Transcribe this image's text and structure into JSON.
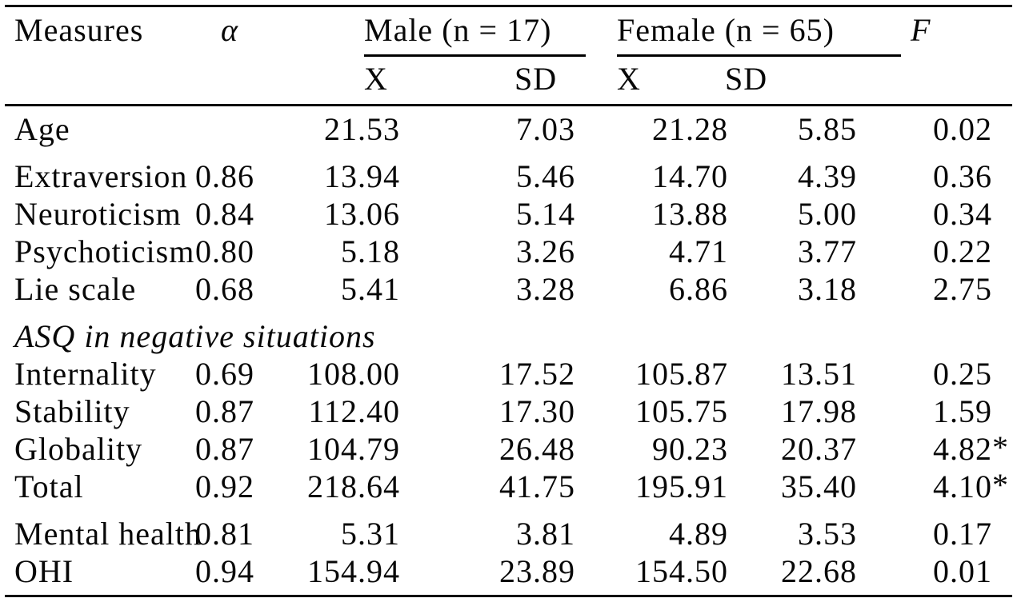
{
  "table": {
    "header": {
      "measures": "Measures",
      "alpha": "α",
      "male_group": "Male (n = 17)",
      "female_group": "Female (n = 65)",
      "f": "F",
      "male_x": "X",
      "male_sd": "SD",
      "female_x": "X",
      "female_sd": "SD"
    },
    "rows": [
      {
        "type": "data",
        "label": "Age",
        "alpha": "",
        "male_x": "21.53",
        "male_sd": "7.03",
        "female_x": "21.28",
        "female_sd": "5.85",
        "f": "0.02",
        "f_star": "",
        "gap_before": false
      },
      {
        "type": "data",
        "label": "Extraversion",
        "alpha": "0.86",
        "male_x": "13.94",
        "male_sd": "5.46",
        "female_x": "14.70",
        "female_sd": "4.39",
        "f": "0.36",
        "f_star": "",
        "gap_before": true
      },
      {
        "type": "data",
        "label": "Neuroticism",
        "alpha": "0.84",
        "male_x": "13.06",
        "male_sd": "5.14",
        "female_x": "13.88",
        "female_sd": "5.00",
        "f": "0.34",
        "f_star": "",
        "gap_before": false
      },
      {
        "type": "data",
        "label": "Psychoticism",
        "alpha": "0.80",
        "male_x": "5.18",
        "male_sd": "3.26",
        "female_x": "4.71",
        "female_sd": "3.77",
        "f": "0.22",
        "f_star": "",
        "gap_before": false
      },
      {
        "type": "data",
        "label": "Lie scale",
        "alpha": "0.68",
        "male_x": "5.41",
        "male_sd": "3.28",
        "female_x": "6.86",
        "female_sd": "3.18",
        "f": "2.75",
        "f_star": "",
        "gap_before": false
      },
      {
        "type": "section",
        "label": "ASQ in negative situations",
        "gap_before": true
      },
      {
        "type": "data",
        "label": "Internality",
        "alpha": "0.69",
        "male_x": "108.00",
        "male_sd": "17.52",
        "female_x": "105.87",
        "female_sd": "13.51",
        "f": "0.25",
        "f_star": "",
        "gap_before": false
      },
      {
        "type": "data",
        "label": "Stability",
        "alpha": "0.87",
        "male_x": "112.40",
        "male_sd": "17.30",
        "female_x": "105.75",
        "female_sd": "17.98",
        "f": "1.59",
        "f_star": "",
        "gap_before": false
      },
      {
        "type": "data",
        "label": "Globality",
        "alpha": "0.87",
        "male_x": "104.79",
        "male_sd": "26.48",
        "female_x": "90.23",
        "female_sd": "20.37",
        "f": "4.82",
        "f_star": "*",
        "gap_before": false
      },
      {
        "type": "data",
        "label": "Total",
        "alpha": "0.92",
        "male_x": "218.64",
        "male_sd": "41.75",
        "female_x": "195.91",
        "female_sd": "35.40",
        "f": "4.10",
        "f_star": "*",
        "gap_before": false
      },
      {
        "type": "data",
        "label": "Mental health",
        "alpha": "0.81",
        "male_x": "5.31",
        "male_sd": "3.81",
        "female_x": "4.89",
        "female_sd": "3.53",
        "f": "0.17",
        "f_star": "",
        "gap_before": true
      },
      {
        "type": "data",
        "label": "OHI",
        "alpha": "0.94",
        "male_x": "154.94",
        "male_sd": "23.89",
        "female_x": "154.50",
        "female_sd": "22.68",
        "f": "0.01",
        "f_star": "",
        "gap_before": false
      }
    ]
  }
}
